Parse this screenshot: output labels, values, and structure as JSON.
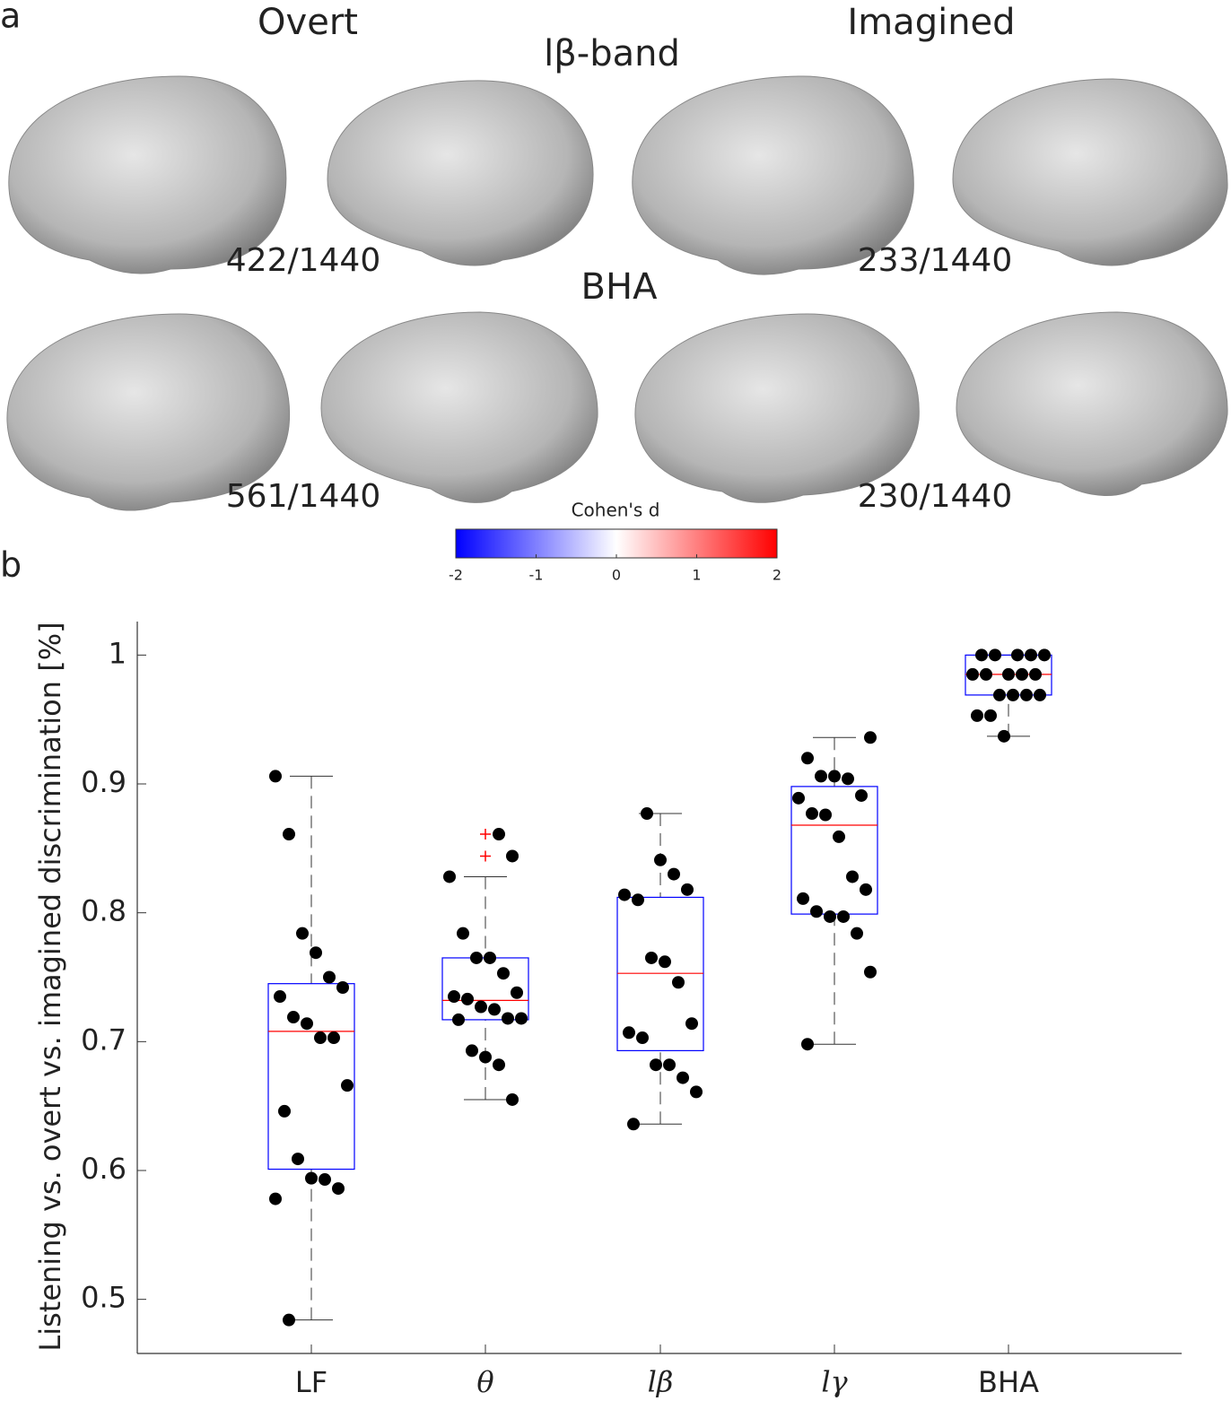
{
  "panel_a": {
    "label": "a",
    "col_titles": [
      "Overt",
      "Imagined"
    ],
    "row_titles": [
      "lβ-band",
      "BHA"
    ],
    "counts": [
      "422/1440",
      "233/1440",
      "561/1440",
      "230/1440"
    ],
    "colorbar": {
      "label": "Cohen's d",
      "lim": [
        -2,
        2
      ],
      "ticks": [
        -2,
        -1,
        0,
        1,
        2
      ],
      "colors": [
        "#0000ff",
        "#ffffff",
        "#ff0000"
      ]
    }
  },
  "chart_data": {
    "type": "box",
    "panel_label": "b",
    "ylabel": "Listening vs. overt vs. imagined discrimination [%]",
    "categories": [
      "LF",
      "θ",
      "lβ",
      "lγ",
      "BHA"
    ],
    "ylim": [
      0.458,
      1.026
    ],
    "yticks": [
      0.5,
      0.6,
      0.7,
      0.8,
      0.9,
      1
    ],
    "box_color": "#0000ff",
    "median_color": "#ff0000",
    "point_color": "#000000",
    "outlier_color": "#ff0000",
    "boxes": [
      {
        "whisker_low": 0.484,
        "q1": 0.601,
        "median": 0.708,
        "q3": 0.745,
        "whisker_high": 0.906,
        "outliers": [],
        "points": [
          0.906,
          0.861,
          0.784,
          0.769,
          0.75,
          0.742,
          0.735,
          0.719,
          0.714,
          0.703,
          0.703,
          0.666,
          0.646,
          0.609,
          0.594,
          0.593,
          0.586,
          0.578,
          0.484
        ]
      },
      {
        "whisker_low": 0.655,
        "q1": 0.717,
        "median": 0.732,
        "q3": 0.765,
        "whisker_high": 0.828,
        "outliers": [
          0.861,
          0.844
        ],
        "points": [
          0.861,
          0.844,
          0.828,
          0.784,
          0.765,
          0.765,
          0.753,
          0.738,
          0.735,
          0.733,
          0.727,
          0.725,
          0.718,
          0.718,
          0.717,
          0.693,
          0.688,
          0.682,
          0.655
        ]
      },
      {
        "whisker_low": 0.636,
        "q1": 0.693,
        "median": 0.753,
        "q3": 0.812,
        "whisker_high": 0.877,
        "outliers": [],
        "points": [
          0.877,
          0.841,
          0.83,
          0.818,
          0.814,
          0.81,
          0.765,
          0.762,
          0.746,
          0.714,
          0.707,
          0.703,
          0.682,
          0.682,
          0.672,
          0.661,
          0.636
        ]
      },
      {
        "whisker_low": 0.698,
        "q1": 0.799,
        "median": 0.868,
        "q3": 0.898,
        "whisker_high": 0.936,
        "outliers": [],
        "points": [
          0.936,
          0.92,
          0.906,
          0.906,
          0.904,
          0.891,
          0.889,
          0.877,
          0.876,
          0.859,
          0.828,
          0.818,
          0.811,
          0.801,
          0.797,
          0.797,
          0.784,
          0.754,
          0.698
        ]
      },
      {
        "whisker_low": 0.937,
        "q1": 0.969,
        "median": 0.985,
        "q3": 1.0,
        "whisker_high": 1.0,
        "outliers": [],
        "points": [
          1,
          1,
          1,
          1,
          1,
          0.985,
          0.985,
          0.985,
          0.985,
          0.985,
          0.969,
          0.969,
          0.969,
          0.969,
          0.953,
          0.953,
          0.937
        ]
      }
    ]
  }
}
